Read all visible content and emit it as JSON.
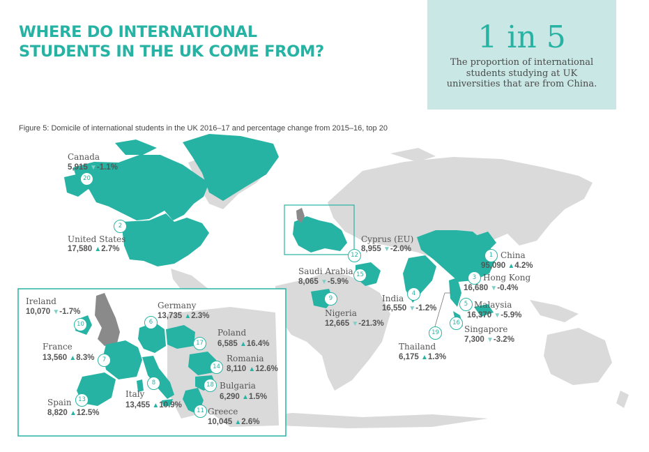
{
  "title": "WHERE DO INTERNATIONAL STUDENTS IN THE UK COME FROM?",
  "stat": {
    "big": "1 in 5",
    "desc": "The proportion of international students studying at UK universities that are from China."
  },
  "caption": "Figure 5: Domicile of international students in the UK 2016–17 and percentage change from 2015–16, top 20",
  "colors": {
    "accent": "#27b3a4",
    "land": "#dadada",
    "uk": "#8a8a8a",
    "statBox": "#c9e8e5"
  },
  "countries": [
    {
      "rank": "1",
      "name": "China",
      "count": "95,090",
      "dir": "up",
      "change": "4.2%"
    },
    {
      "rank": "2",
      "name": "United States",
      "count": "17,580",
      "dir": "up",
      "change": "2.7%"
    },
    {
      "rank": "3",
      "name": "Hong Kong",
      "count": "16,680",
      "dir": "down",
      "change": "-0.4%"
    },
    {
      "rank": "4",
      "name": "India",
      "count": "16,550",
      "dir": "down",
      "change": "-1.2%"
    },
    {
      "rank": "5",
      "name": "Malaysia",
      "count": "16,370",
      "dir": "down",
      "change": "-5.9%"
    },
    {
      "rank": "6",
      "name": "Germany",
      "count": "13,735",
      "dir": "up",
      "change": "2.3%"
    },
    {
      "rank": "7",
      "name": "France",
      "count": "13,560",
      "dir": "up",
      "change": "8.3%"
    },
    {
      "rank": "8",
      "name": "Italy",
      "count": "13,455",
      "dir": "up",
      "change": "10.9%"
    },
    {
      "rank": "9",
      "name": "Nigeria",
      "count": "12,665",
      "dir": "down",
      "change": "-21.3%"
    },
    {
      "rank": "10",
      "name": "Ireland",
      "count": "10,070",
      "dir": "down",
      "change": "-1.7%"
    },
    {
      "rank": "11",
      "name": "Greece",
      "count": "10,045",
      "dir": "up",
      "change": "2.6%"
    },
    {
      "rank": "12",
      "name": "Cyprus (EU)",
      "count": "8,955",
      "dir": "down",
      "change": "-2.0%"
    },
    {
      "rank": "13",
      "name": "Spain",
      "count": "8,820",
      "dir": "up",
      "change": "12.5%"
    },
    {
      "rank": "14",
      "name": "Romania",
      "count": "8,110",
      "dir": "up",
      "change": "12.6%"
    },
    {
      "rank": "15",
      "name": "Saudi Arabia",
      "count": "8,065",
      "dir": "down",
      "change": "-5.9%"
    },
    {
      "rank": "16",
      "name": "Singapore",
      "count": "7,300",
      "dir": "down",
      "change": "-3.2%"
    },
    {
      "rank": "17",
      "name": "Poland",
      "count": "6,585",
      "dir": "up",
      "change": "16.4%"
    },
    {
      "rank": "18",
      "name": "Bulgaria",
      "count": "6,290",
      "dir": "up",
      "change": "1.5%"
    },
    {
      "rank": "19",
      "name": "Thailand",
      "count": "6,175",
      "dir": "up",
      "change": "1.3%"
    },
    {
      "rank": "20",
      "name": "Canada",
      "count": "5,915",
      "dir": "down",
      "change": "-1.1%"
    }
  ]
}
